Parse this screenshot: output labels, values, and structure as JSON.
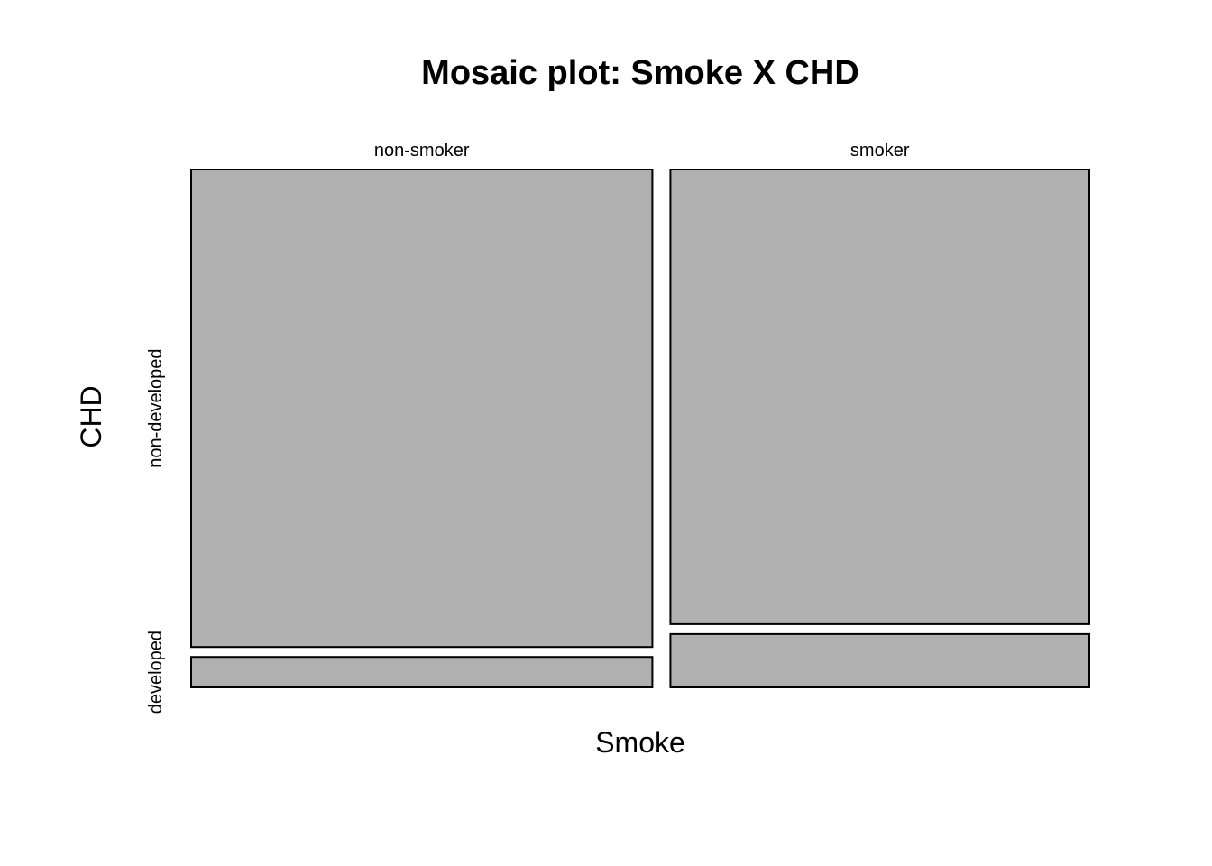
{
  "chart_data": {
    "type": "mosaic",
    "title": "Mosaic plot: Smoke X CHD",
    "xlabel": "Smoke",
    "ylabel": "CHD",
    "x_categories": [
      "non-smoker",
      "smoker"
    ],
    "y_categories": [
      "non-developed",
      "developed"
    ],
    "x_proportions": [
      0.524,
      0.476
    ],
    "conditional_proportions": [
      {
        "x": "non-smoker",
        "non-developed": 0.94,
        "developed": 0.06
      },
      {
        "x": "smoker",
        "non-developed": 0.895,
        "developed": 0.105
      }
    ],
    "fill_color": "#b0b0b0",
    "stroke_color": "#000000"
  }
}
